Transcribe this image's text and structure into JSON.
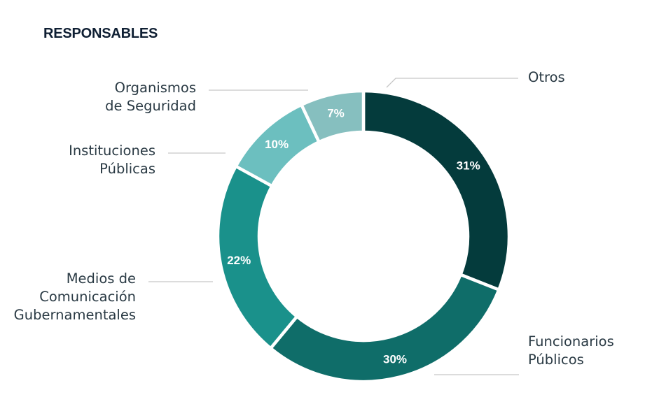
{
  "title": "RESPONSABLES",
  "chart_data": {
    "type": "pie",
    "donut": true,
    "slices": [
      {
        "name": "Funcionarios Públicos",
        "label_lines": [
          "Funcionarios",
          "Públicos"
        ],
        "value": 31,
        "value_label": "31%",
        "color": "#043b3c"
      },
      {
        "name": "Medios de Comunicación Gubernamentales",
        "label_lines": [
          "Medios de",
          "Comunicación",
          "Gubernamentales"
        ],
        "value": 22,
        "value_label": "22%",
        "color": "#1a918b"
      },
      {
        "name": "Instituciones Públicas",
        "label_lines": [
          "Instituciones",
          "Públicas"
        ],
        "value": 10,
        "value_label": "10%",
        "color": "#6cbfbf"
      },
      {
        "name": "Organismos de Seguridad",
        "label_lines": [
          "Organismos",
          "de Seguridad"
        ],
        "value": 7,
        "value_label": "7%",
        "color": "#86bfbf"
      },
      {
        "name": "Otros",
        "label_lines": [
          "Otros"
        ],
        "value": 0,
        "value_label": "",
        "color": "#cccccc"
      }
    ],
    "clockwise_order": [
      "Funcionarios Públicos",
      "Medios de Comunicación Gubernamentales",
      "Instituciones Públicas",
      "Organismos de Seguridad",
      "Otros"
    ],
    "extra_slice_between": {
      "name": "",
      "value": 30,
      "value_label": "30%",
      "color": "#0f6d69"
    }
  }
}
